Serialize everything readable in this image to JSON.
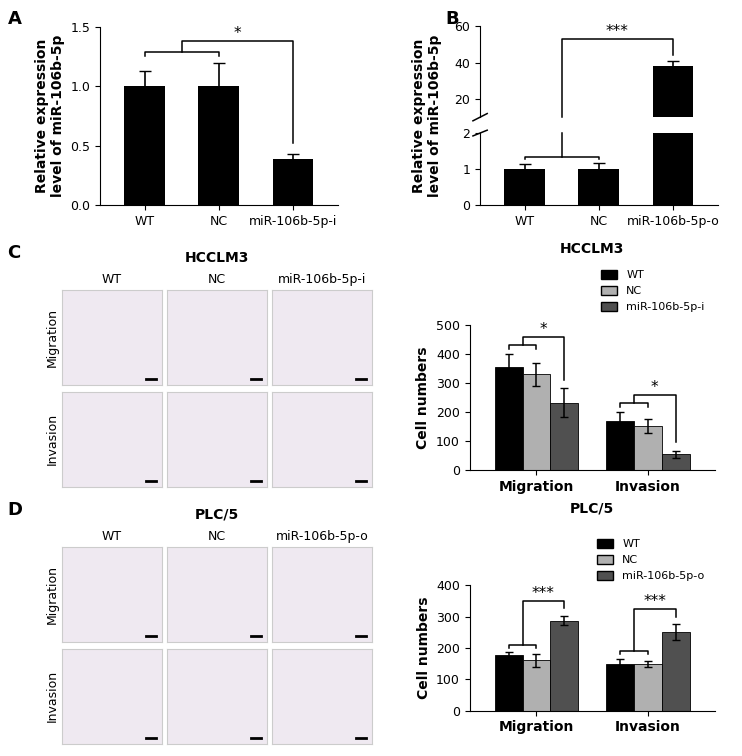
{
  "chart_data": [
    {
      "panel": "A",
      "type": "bar",
      "categories": [
        "WT",
        "NC",
        "miR-106b-5p-i"
      ],
      "values": [
        1.0,
        1.0,
        0.39
      ],
      "errors": [
        0.13,
        0.2,
        0.04
      ],
      "color": "#000000",
      "ylabel": "Relative expression\nlevel of miR-106b-5p",
      "ylim": [
        0,
        1.5
      ],
      "yticks": [
        0.0,
        0.5,
        1.0,
        1.5
      ],
      "significance": [
        {
          "from": [
            "WT",
            "NC"
          ],
          "to": "miR-106b-5p-i",
          "label": "*"
        }
      ]
    },
    {
      "panel": "B",
      "type": "broken_bar",
      "categories": [
        "WT",
        "NC",
        "miR-106b-5p-o"
      ],
      "values": [
        1.0,
        1.0,
        38
      ],
      "errors": [
        0.13,
        0.18,
        3
      ],
      "color": "#000000",
      "ylabel": "Relative expression\nlevel of miR-106b-5p",
      "ylim": [
        [
          0,
          2
        ],
        [
          10,
          60
        ]
      ],
      "yticks": [
        [
          0,
          1,
          2
        ],
        [
          20,
          40,
          60
        ]
      ],
      "significance": [
        {
          "from": [
            "WT",
            "NC"
          ],
          "to": "miR-106b-5p-o",
          "label": "***"
        }
      ]
    },
    {
      "panel": "C",
      "type": "grouped_bar",
      "title": "HCCLM3",
      "categories": [
        "Migration",
        "Invasion"
      ],
      "series": [
        {
          "name": "WT",
          "color": "#000000",
          "values": [
            355,
            170
          ],
          "errors": [
            45,
            30
          ]
        },
        {
          "name": "NC",
          "color": "#b0b0b0",
          "values": [
            330,
            153
          ],
          "errors": [
            40,
            25
          ]
        },
        {
          "name": "miR-106b-5p-i",
          "color": "#505050",
          "values": [
            232,
            55
          ],
          "errors": [
            50,
            12
          ]
        }
      ],
      "ylabel": "Cell numbers",
      "ylim": [
        0,
        500
      ],
      "yticks": [
        0,
        100,
        200,
        300,
        400,
        500
      ],
      "legend": "upper right",
      "significance": [
        {
          "category": "Migration",
          "from": [
            "WT",
            "NC"
          ],
          "to": "miR-106b-5p-i",
          "label": "*"
        },
        {
          "category": "Invasion",
          "from": [
            "WT",
            "NC"
          ],
          "to": "miR-106b-5p-i",
          "label": "*"
        }
      ]
    },
    {
      "panel": "D",
      "type": "grouped_bar",
      "title": "PLC/5",
      "categories": [
        "Migration",
        "Invasion"
      ],
      "series": [
        {
          "name": "WT",
          "color": "#000000",
          "values": [
            178,
            148
          ],
          "errors": [
            8,
            18
          ]
        },
        {
          "name": "NC",
          "color": "#b0b0b0",
          "values": [
            160,
            148
          ],
          "errors": [
            20,
            10
          ]
        },
        {
          "name": "miR-106b-5p-o",
          "color": "#505050",
          "values": [
            287,
            250
          ],
          "errors": [
            15,
            25
          ]
        }
      ],
      "ylabel": "Cell numbers",
      "ylim": [
        0,
        400
      ],
      "yticks": [
        0,
        100,
        200,
        300,
        400
      ],
      "legend": "upper right",
      "significance": [
        {
          "category": "Migration",
          "from": [
            "WT",
            "NC"
          ],
          "to": "miR-106b-5p-o",
          "label": "***"
        },
        {
          "category": "Invasion",
          "from": [
            "WT",
            "NC"
          ],
          "to": "miR-106b-5p-o",
          "label": "***"
        }
      ]
    }
  ],
  "image_grids": [
    {
      "panel": "C",
      "title": "HCCLM3",
      "columns": [
        "WT",
        "NC",
        "miR-106b-5p-i"
      ],
      "rows": [
        "Migration",
        "Invasion"
      ]
    },
    {
      "panel": "D",
      "title": "PLC/5",
      "columns": [
        "WT",
        "NC",
        "miR-106b-5p-o"
      ],
      "rows": [
        "Migration",
        "Invasion"
      ]
    }
  ]
}
